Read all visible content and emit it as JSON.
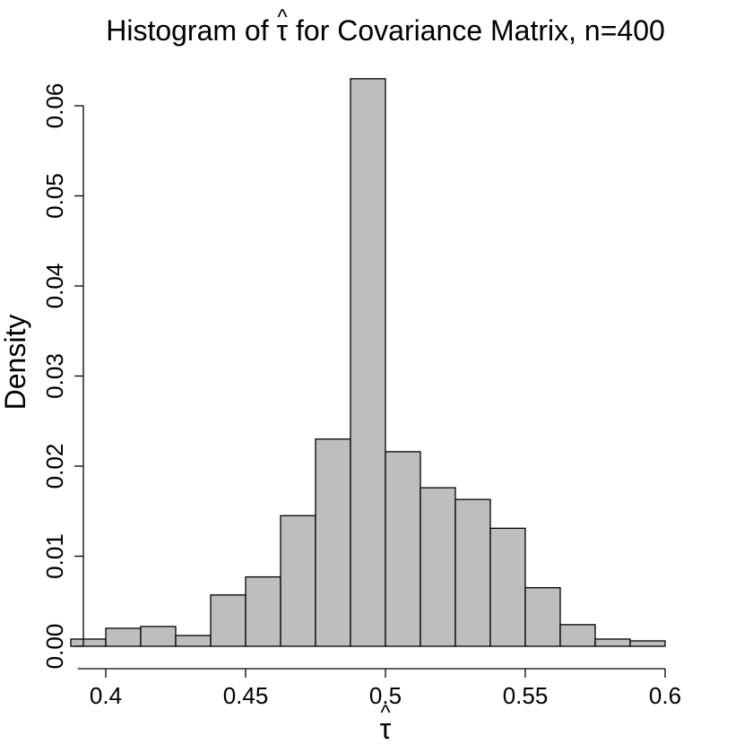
{
  "chart_data": {
    "type": "bar",
    "title_prefix": "Histogram of ",
    "title_symbol": "τ",
    "title_hat": "^",
    "title_suffix": " for Covariance Matrix, n=400",
    "xlabel_symbol": "τ",
    "xlabel_hat": "^",
    "ylabel": "Density",
    "bin_edges": [
      0.3875,
      0.4,
      0.4125,
      0.425,
      0.4375,
      0.45,
      0.4625,
      0.475,
      0.4875,
      0.5,
      0.5125,
      0.525,
      0.5375,
      0.55,
      0.5625,
      0.575,
      0.5875,
      0.6
    ],
    "values": [
      0.0008,
      0.002,
      0.0022,
      0.0012,
      0.0057,
      0.0077,
      0.0145,
      0.023,
      0.063,
      0.0216,
      0.0176,
      0.0163,
      0.0131,
      0.0065,
      0.0024,
      0.0008,
      0.0006
    ],
    "xlim": [
      0.39,
      0.6
    ],
    "ylim": [
      0,
      0.06
    ],
    "xticks": [
      0.4,
      0.45,
      0.5,
      0.55,
      0.6
    ],
    "xtick_labels": [
      "0.4",
      "0.45",
      "0.5",
      "0.55",
      "0.6"
    ],
    "yticks": [
      0,
      0.01,
      0.02,
      0.03,
      0.04,
      0.05,
      0.06
    ],
    "ytick_labels": [
      "0.00",
      "0.01",
      "0.02",
      "0.03",
      "0.04",
      "0.05",
      "0.06"
    ],
    "bar_color": "#bebebe",
    "grid": false,
    "legend": "none"
  }
}
